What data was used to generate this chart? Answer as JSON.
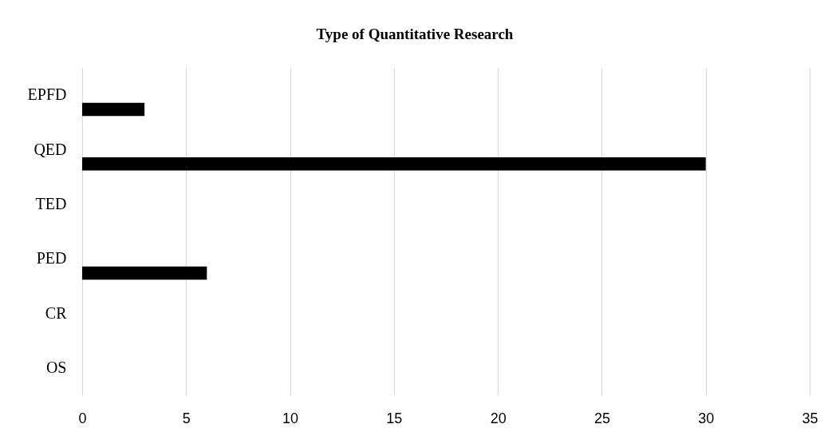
{
  "chart_data": {
    "type": "bar",
    "orientation": "horizontal",
    "title": "Type of Quantitative Research",
    "categories": [
      "EPFD",
      "QED",
      "TED",
      "PED",
      "CR",
      "OS"
    ],
    "values": [
      3,
      30,
      0,
      6,
      0,
      0
    ],
    "color": "#000000",
    "xlim": [
      0,
      35
    ],
    "xticks": [
      0,
      5,
      10,
      15,
      20,
      25,
      30,
      35
    ],
    "grid": "x"
  }
}
